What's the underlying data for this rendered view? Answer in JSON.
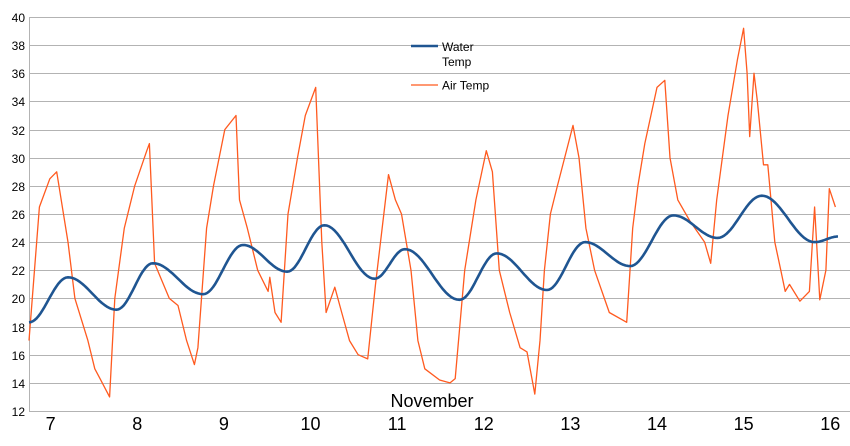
{
  "chart_data": {
    "type": "line",
    "title": "",
    "xlabel": "November",
    "ylabel": "",
    "xlim": [
      6.75,
      16.09
    ],
    "ylim": [
      12,
      40
    ],
    "y_ticks": [
      12,
      14,
      16,
      18,
      20,
      22,
      24,
      26,
      28,
      30,
      32,
      34,
      36,
      38,
      40
    ],
    "x_ticks": [
      7,
      8,
      9,
      10,
      11,
      12,
      13,
      14,
      15,
      16
    ],
    "grid": true,
    "legend_position": "top-center",
    "series": [
      {
        "name": "Water Temp",
        "legend_lines": [
          "Water",
          "Temp"
        ],
        "color": "#1f5591",
        "points": [
          [
            6.75,
            18.3
          ],
          [
            7.2,
            21.5
          ],
          [
            7.76,
            19.2
          ],
          [
            8.18,
            22.5
          ],
          [
            8.76,
            20.3
          ],
          [
            9.22,
            23.8
          ],
          [
            9.73,
            21.9
          ],
          [
            10.16,
            25.2
          ],
          [
            10.74,
            21.4
          ],
          [
            11.09,
            23.5
          ],
          [
            11.72,
            19.9
          ],
          [
            12.15,
            23.2
          ],
          [
            12.73,
            20.6
          ],
          [
            13.17,
            24.0
          ],
          [
            13.69,
            22.3
          ],
          [
            14.19,
            25.9
          ],
          [
            14.7,
            24.3
          ],
          [
            15.21,
            27.3
          ],
          [
            15.82,
            24.0
          ],
          [
            16.09,
            24.4
          ]
        ]
      },
      {
        "name": "Air Temp",
        "legend_lines": [
          "Air Temp"
        ],
        "color": "#ff5a1f",
        "points": [
          [
            6.75,
            17
          ],
          [
            6.87,
            26.5
          ],
          [
            6.99,
            28.5
          ],
          [
            7.07,
            29
          ],
          [
            7.2,
            24
          ],
          [
            7.28,
            20
          ],
          [
            7.43,
            17
          ],
          [
            7.51,
            15
          ],
          [
            7.57,
            14.3
          ],
          [
            7.68,
            13
          ],
          [
            7.74,
            20
          ],
          [
            7.85,
            25
          ],
          [
            7.97,
            28
          ],
          [
            8.11,
            30.5
          ],
          [
            8.14,
            31
          ],
          [
            8.2,
            22.5
          ],
          [
            8.37,
            20
          ],
          [
            8.47,
            19.5
          ],
          [
            8.57,
            17
          ],
          [
            8.66,
            15.3
          ],
          [
            8.7,
            16.5
          ],
          [
            8.8,
            25
          ],
          [
            8.88,
            28
          ],
          [
            9.01,
            32
          ],
          [
            9.14,
            33
          ],
          [
            9.18,
            27
          ],
          [
            9.27,
            25
          ],
          [
            9.39,
            22
          ],
          [
            9.51,
            20.5
          ],
          [
            9.53,
            21.5
          ],
          [
            9.59,
            19
          ],
          [
            9.66,
            18.3
          ],
          [
            9.74,
            26
          ],
          [
            9.85,
            30
          ],
          [
            9.94,
            33
          ],
          [
            10.06,
            35
          ],
          [
            10.13,
            24
          ],
          [
            10.18,
            19
          ],
          [
            10.28,
            20.8
          ],
          [
            10.36,
            19
          ],
          [
            10.45,
            17
          ],
          [
            10.55,
            16
          ],
          [
            10.66,
            15.7
          ],
          [
            10.75,
            21
          ],
          [
            10.9,
            28.8
          ],
          [
            10.98,
            27
          ],
          [
            11.05,
            26
          ],
          [
            11.16,
            22
          ],
          [
            11.24,
            17
          ],
          [
            11.32,
            15
          ],
          [
            11.49,
            14.2
          ],
          [
            11.61,
            14
          ],
          [
            11.67,
            14.3
          ],
          [
            11.78,
            22
          ],
          [
            11.91,
            27
          ],
          [
            12.03,
            30.5
          ],
          [
            12.1,
            29
          ],
          [
            12.18,
            22
          ],
          [
            12.3,
            19
          ],
          [
            12.42,
            16.5
          ],
          [
            12.5,
            16.2
          ],
          [
            12.59,
            13.2
          ],
          [
            12.65,
            17
          ],
          [
            12.7,
            22
          ],
          [
            12.77,
            26
          ],
          [
            12.85,
            28
          ],
          [
            13.03,
            32.3
          ],
          [
            13.1,
            30
          ],
          [
            13.18,
            25
          ],
          [
            13.28,
            22
          ],
          [
            13.45,
            19
          ],
          [
            13.65,
            18.3
          ],
          [
            13.72,
            25
          ],
          [
            13.78,
            28
          ],
          [
            13.86,
            31
          ],
          [
            14.0,
            35
          ],
          [
            14.09,
            35.5
          ],
          [
            14.15,
            30
          ],
          [
            14.24,
            27
          ],
          [
            14.38,
            25.5
          ],
          [
            14.55,
            24
          ],
          [
            14.62,
            22.5
          ],
          [
            14.69,
            27
          ],
          [
            14.82,
            33
          ],
          [
            14.93,
            37
          ],
          [
            15.0,
            39.2
          ],
          [
            15.04,
            36
          ],
          [
            15.07,
            31.5
          ],
          [
            15.12,
            36
          ],
          [
            15.16,
            34
          ],
          [
            15.23,
            29.5
          ],
          [
            15.28,
            29.5
          ],
          [
            15.36,
            24
          ],
          [
            15.43,
            22
          ],
          [
            15.48,
            20.5
          ],
          [
            15.53,
            21
          ],
          [
            15.65,
            19.8
          ],
          [
            15.76,
            20.5
          ],
          [
            15.82,
            26.5
          ],
          [
            15.88,
            19.9
          ],
          [
            15.95,
            22
          ],
          [
            15.99,
            27.8
          ],
          [
            16.06,
            26.5
          ]
        ]
      }
    ]
  }
}
